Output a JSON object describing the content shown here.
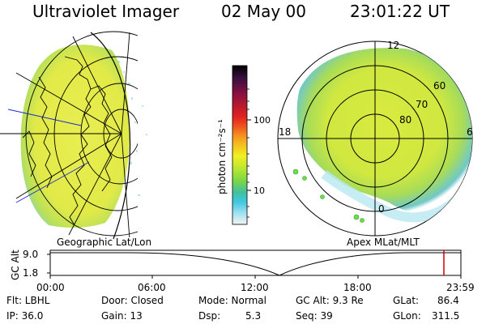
{
  "header": {
    "instrument": "Ultraviolet Imager",
    "date": "02 May 00",
    "time": "23:01:22 UT"
  },
  "colorbar": {
    "unit_label": "photon cm⁻²s⁻¹",
    "ticks": [
      "100",
      "10"
    ],
    "colors": [
      "#000000",
      "#3a1040",
      "#7a1040",
      "#b01830",
      "#e02020",
      "#f05020",
      "#f49020",
      "#f4c020",
      "#f0f020",
      "#c0e830",
      "#80d840",
      "#40c0c0",
      "#40c8e0",
      "#a0e0f0",
      "#f0f0f0"
    ]
  },
  "map_left": {
    "caption": "Geographic Lat/Lon",
    "fill_color": "#e6ec48",
    "rim_color": "#a8d860"
  },
  "map_right": {
    "caption": "Apex MLat/MLT",
    "fill_color": "#d6ea44",
    "lat_labels": [
      "80",
      "70",
      "60"
    ],
    "mlt_labels": [
      "12",
      "18",
      "6",
      "0"
    ]
  },
  "timeline": {
    "ylabel": "GC Alt",
    "yticks": [
      "9.0",
      "1.8"
    ],
    "xticks": [
      "00:00",
      "06:00",
      "12:00",
      "18:00",
      "23:59"
    ],
    "marker_color": "#d00000"
  },
  "info": {
    "flt": "Flt: LBHL",
    "ip": "IP: 36.0",
    "door": "Door: Closed",
    "gain": "Gain: 13",
    "mode": "Mode: Normal",
    "dsp_label": "Dsp:",
    "dsp_value": "5.3",
    "gc_alt": "GC Alt: 9.3 Re",
    "seq": "Seq: 39",
    "glat_label": "GLat:",
    "glat_value": "86.4",
    "glon_label": "GLon:",
    "glon_value": "311.5"
  }
}
